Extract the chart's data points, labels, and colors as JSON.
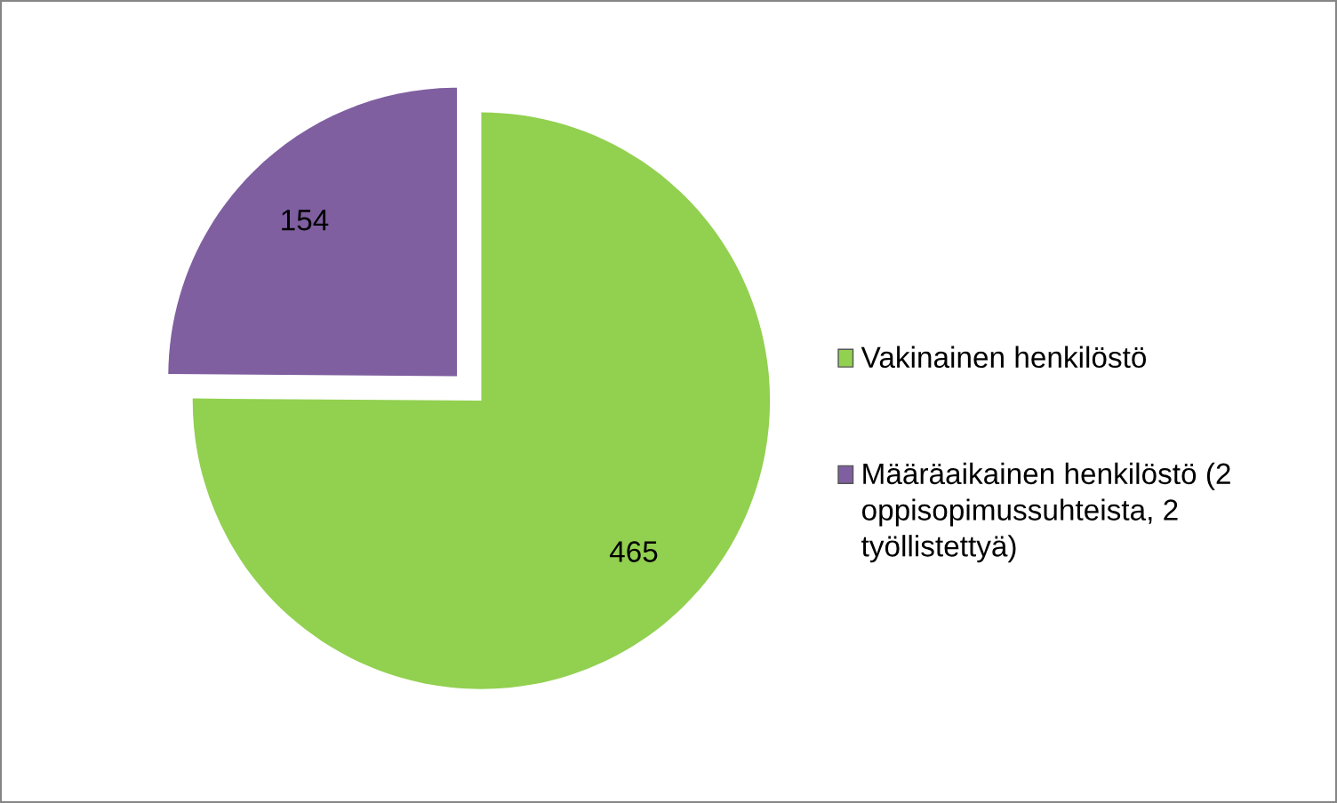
{
  "chart_data": {
    "type": "pie",
    "categories": [
      "Vakinainen henkilöstö",
      "Määräaikainen henkilöstö (2 oppisopimussuhteista, 2 työllistettyä)"
    ],
    "values": [
      465,
      154
    ],
    "colors": [
      "#92d050",
      "#7f5fa0"
    ],
    "data_labels": true,
    "legend": "right"
  }
}
